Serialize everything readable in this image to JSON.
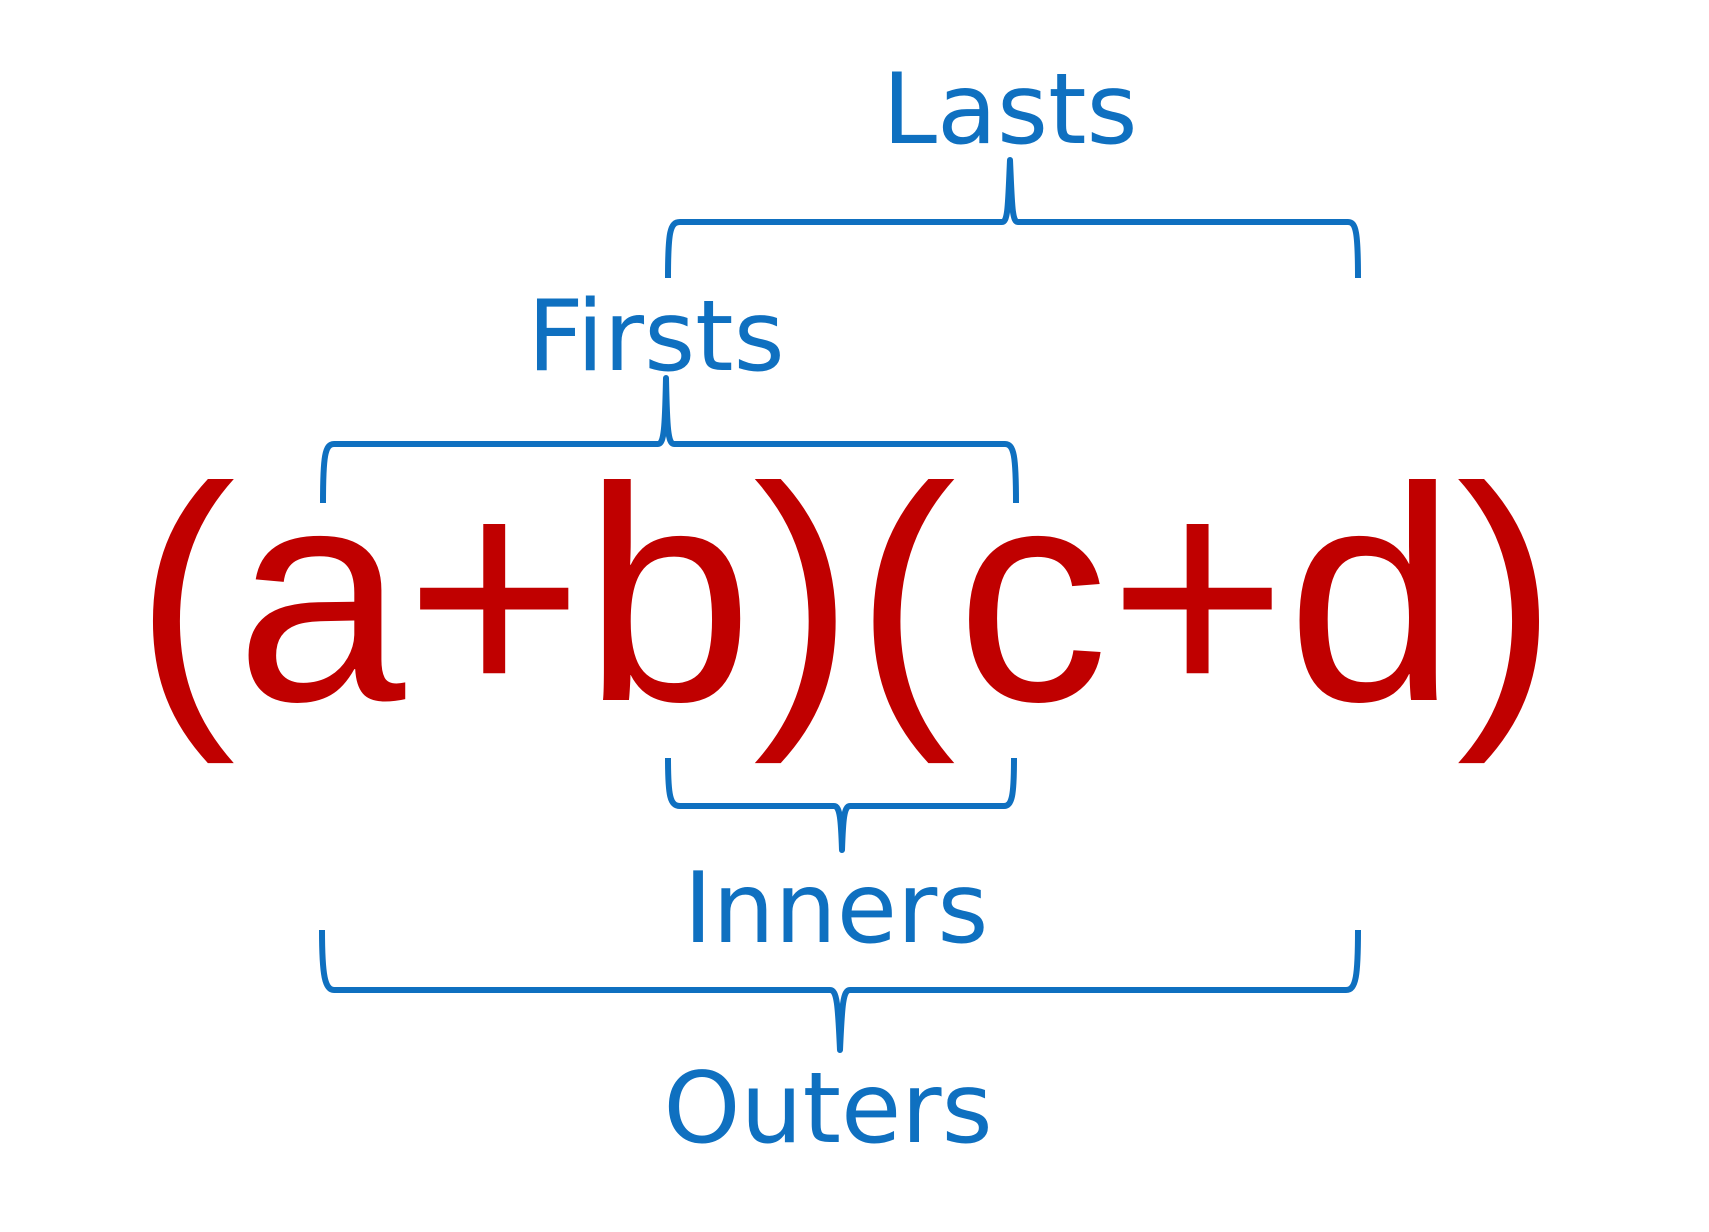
{
  "expression": {
    "text": "(a+b)(c+d)",
    "color": "#c00000"
  },
  "labels": {
    "lasts": "Lasts",
    "firsts": "Firsts",
    "inners": "Inners",
    "outers": "Outers",
    "color": "#0f70c0"
  }
}
